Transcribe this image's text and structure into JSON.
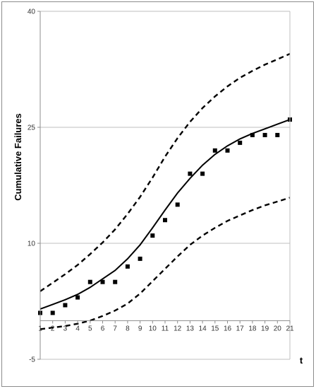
{
  "chart_data": {
    "type": "scatter",
    "xlabel": "t",
    "ylabel": "Cumulative Failures",
    "xlim": [
      1,
      21
    ],
    "ylim": [
      -5,
      40
    ],
    "yticks": [
      -5,
      10,
      25,
      40
    ],
    "xticks": [
      1,
      2,
      3,
      4,
      5,
      6,
      7,
      8,
      9,
      10,
      11,
      12,
      13,
      14,
      15,
      16,
      17,
      18,
      19,
      20,
      21
    ],
    "grid": "horizontal",
    "legend": "none",
    "series": [
      {
        "kind": "points",
        "x": [
          1,
          2,
          3,
          4,
          5,
          6,
          7,
          8,
          9,
          10,
          11,
          12,
          13,
          14,
          15,
          16,
          17,
          18,
          19,
          20,
          21
        ],
        "y": [
          1,
          1,
          2,
          3,
          5,
          5,
          5,
          7,
          8,
          11,
          13,
          15,
          19,
          19,
          22,
          22,
          23,
          24,
          24,
          24,
          26
        ]
      },
      {
        "kind": "fit",
        "x": [
          1,
          2,
          3,
          4,
          5,
          6,
          7,
          8,
          9,
          10,
          11,
          12,
          13,
          14,
          15,
          16,
          17,
          18,
          19,
          20,
          21
        ],
        "y": [
          1.5,
          2.1,
          2.7,
          3.4,
          4.3,
          5.4,
          6.5,
          8.0,
          9.8,
          12.0,
          14.3,
          16.5,
          18.4,
          20.1,
          21.5,
          22.6,
          23.5,
          24.2,
          24.8,
          25.4,
          26.0
        ]
      },
      {
        "kind": "upper-bound",
        "x": [
          1,
          2,
          3,
          4,
          5,
          6,
          7,
          8,
          9,
          10,
          11,
          12,
          13,
          14,
          15,
          16,
          17,
          18,
          19,
          20,
          21
        ],
        "y": [
          3.8,
          4.9,
          6.0,
          7.2,
          8.6,
          10.1,
          11.8,
          13.8,
          16.0,
          18.5,
          21.2,
          23.6,
          25.7,
          27.5,
          29.0,
          30.3,
          31.4,
          32.3,
          33.1,
          33.8,
          34.5
        ]
      },
      {
        "kind": "lower-bound",
        "x": [
          1,
          2,
          3,
          4,
          5,
          6,
          7,
          8,
          9,
          10,
          11,
          12,
          13,
          14,
          15,
          16,
          17,
          18,
          19,
          20,
          21
        ],
        "y": [
          -1.1,
          -0.9,
          -0.7,
          -0.4,
          0.0,
          0.6,
          1.3,
          2.2,
          3.5,
          5.1,
          6.7,
          8.3,
          9.8,
          11.0,
          12.0,
          12.9,
          13.6,
          14.3,
          14.9,
          15.4,
          15.9
        ]
      }
    ]
  }
}
